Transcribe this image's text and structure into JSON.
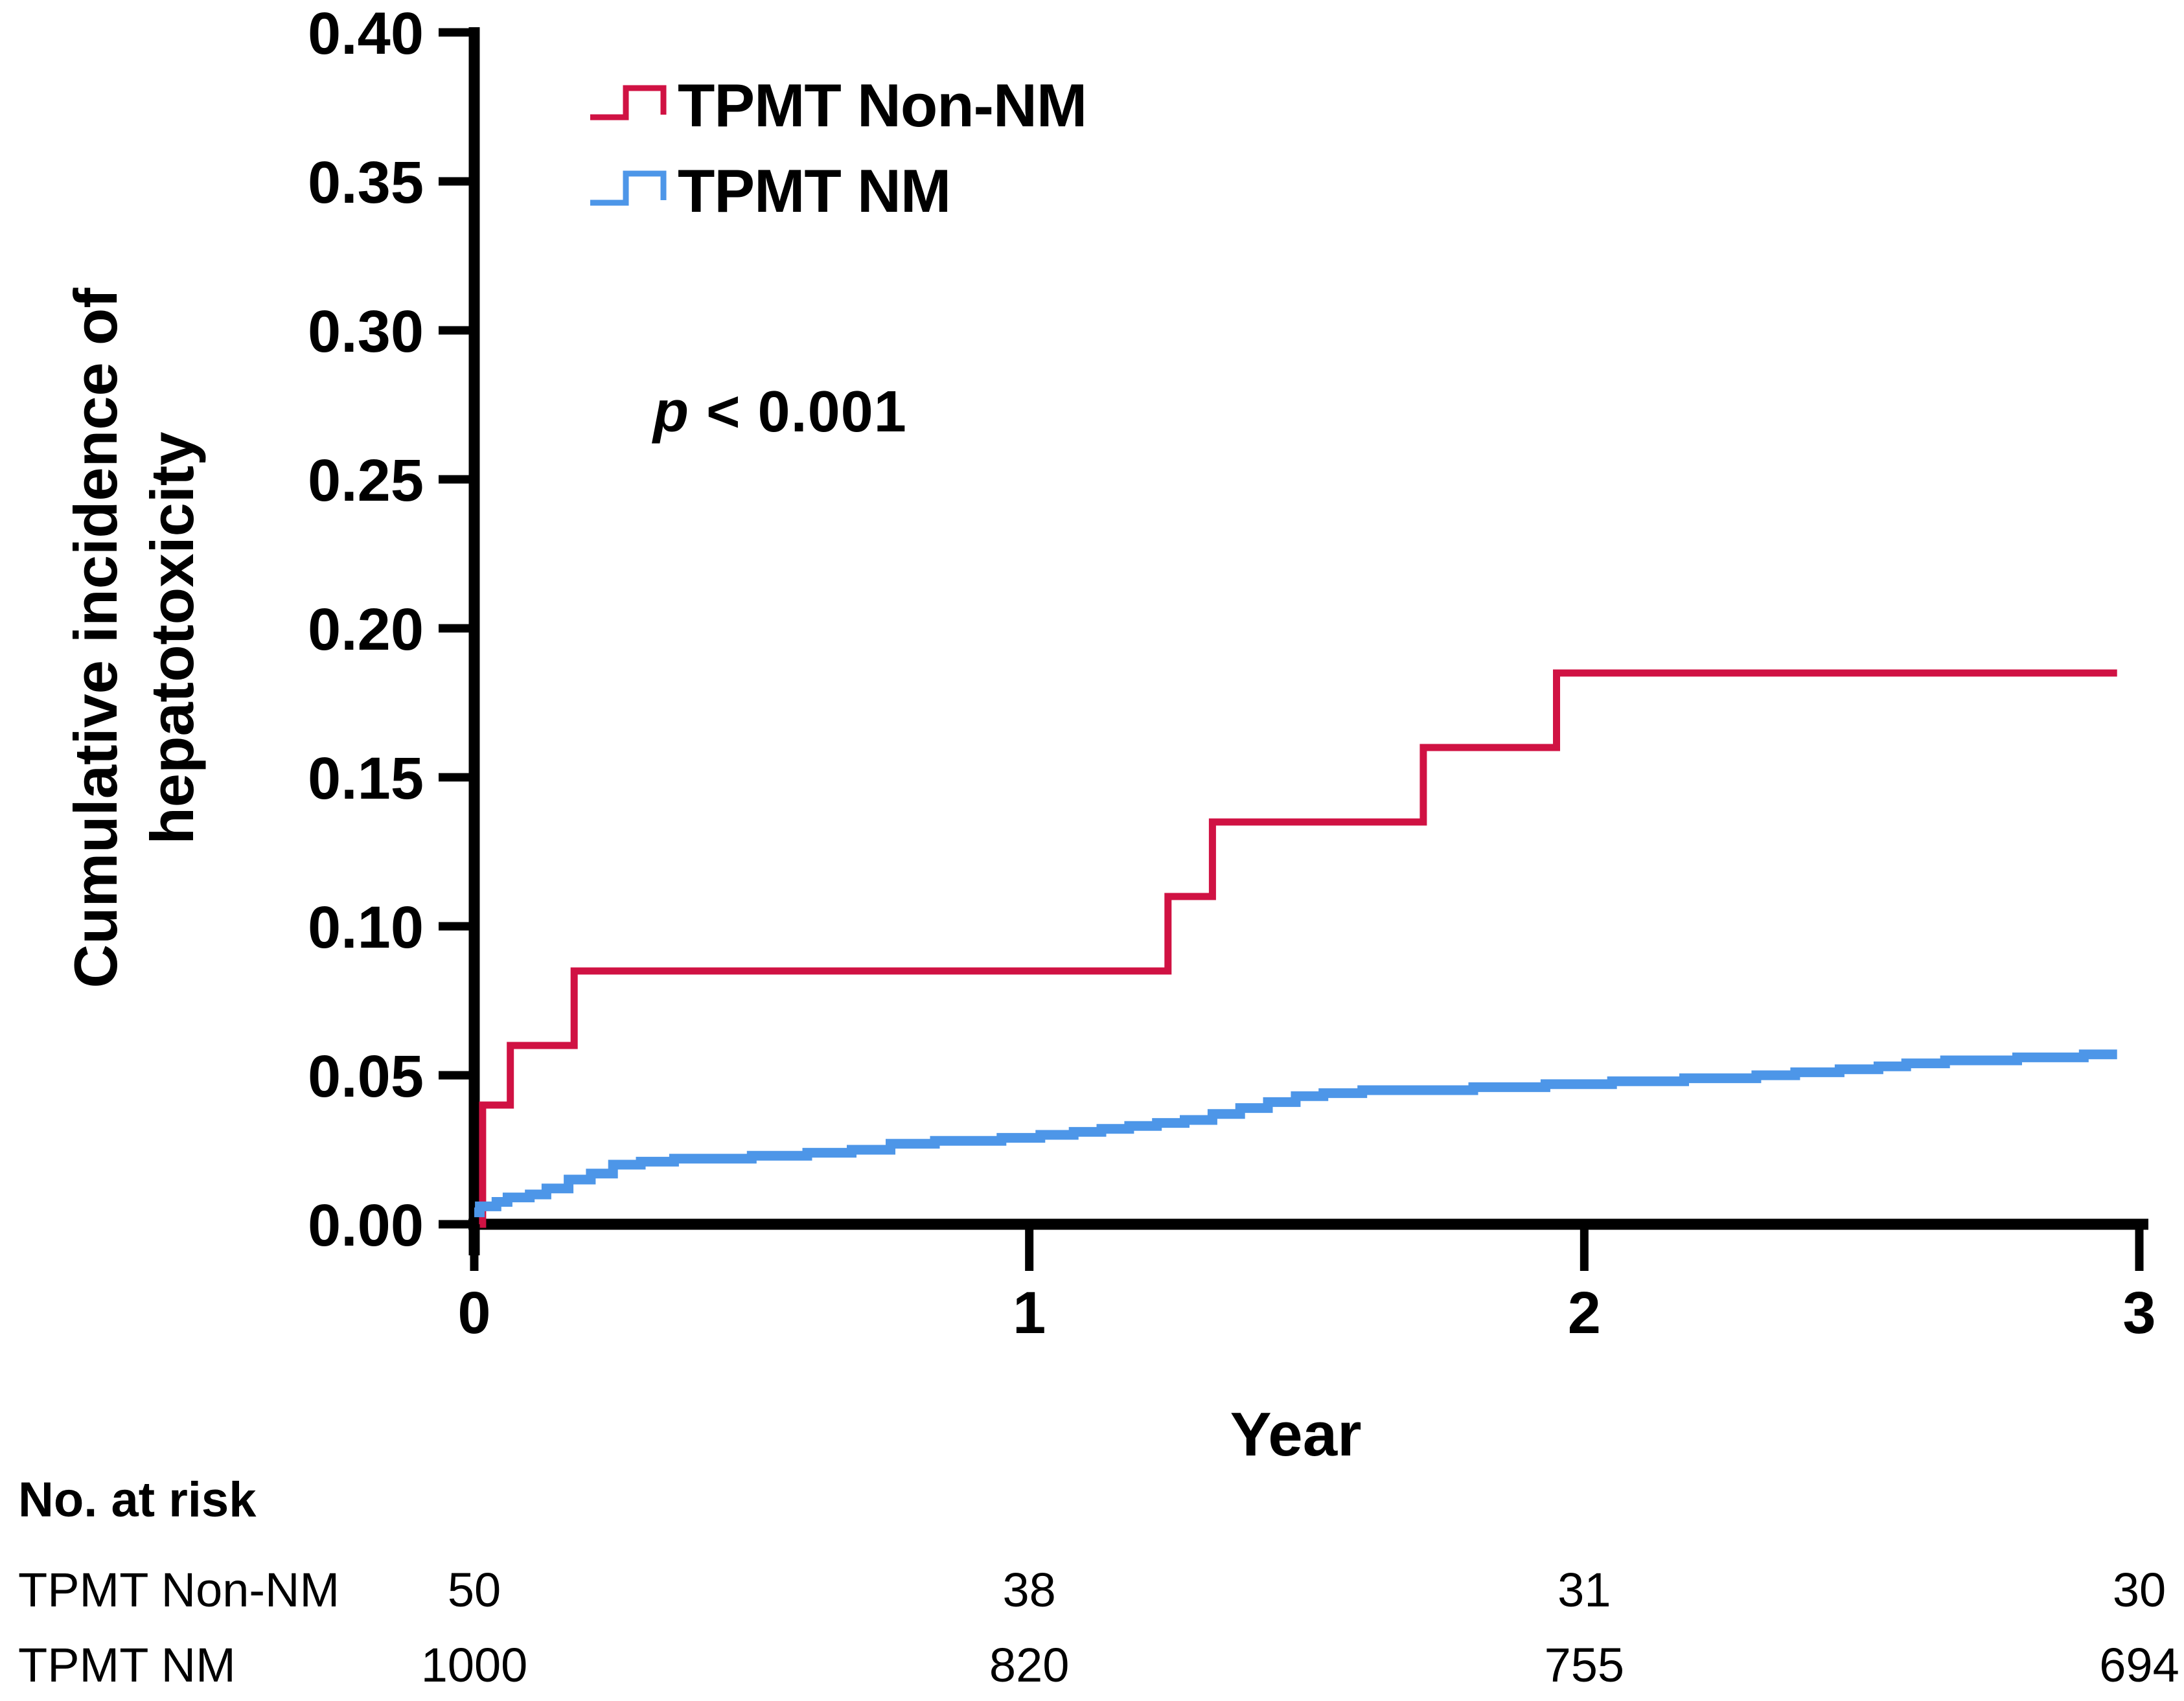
{
  "chart_data": {
    "type": "line",
    "subtype": "step",
    "title": "",
    "xlabel": "Year",
    "ylabel_lines": [
      "Cumulative incidence of",
      "hepatotoxicity"
    ],
    "xlim": [
      0,
      3
    ],
    "ylim": [
      0,
      0.4
    ],
    "grid": false,
    "xticks": {
      "values": [
        0,
        1,
        2,
        3
      ],
      "labels": [
        "0",
        "1",
        "2",
        "3"
      ]
    },
    "yticks": {
      "values": [
        0.0,
        0.05,
        0.1,
        0.15,
        0.2,
        0.25,
        0.3,
        0.35,
        0.4
      ],
      "labels": [
        "0.00",
        "0.05",
        "0.10",
        "0.15",
        "0.20",
        "0.25",
        "0.30",
        "0.35",
        "0.40"
      ]
    },
    "annotation": {
      "italic_part": "p",
      "text_part": " < 0.001"
    },
    "legend": {
      "position": "top-left-inside",
      "entries": [
        {
          "name": "TPMT Non-NM",
          "color": "#D01243"
        },
        {
          "name": "TPMT NM",
          "color": "#4D96E8"
        }
      ]
    },
    "series": [
      {
        "name": "TPMT Non-NM",
        "color": "#D01243",
        "stroke_width": 11,
        "end_x": 2.96,
        "points": [
          [
            0.01,
            0.0
          ],
          [
            0.015,
            0.04
          ],
          [
            0.065,
            0.06
          ],
          [
            0.18,
            0.085
          ],
          [
            1.25,
            0.11
          ],
          [
            1.33,
            0.135
          ],
          [
            1.71,
            0.16
          ],
          [
            1.95,
            0.185
          ]
        ]
      },
      {
        "name": "TPMT NM",
        "color": "#4D96E8",
        "stroke_width": 15,
        "end_x": 2.96,
        "points": [
          [
            0.0,
            0.004
          ],
          [
            0.01,
            0.006
          ],
          [
            0.04,
            0.0075
          ],
          [
            0.06,
            0.009
          ],
          [
            0.1,
            0.01
          ],
          [
            0.13,
            0.012
          ],
          [
            0.17,
            0.015
          ],
          [
            0.21,
            0.017
          ],
          [
            0.25,
            0.02
          ],
          [
            0.3,
            0.021
          ],
          [
            0.36,
            0.022
          ],
          [
            0.5,
            0.023
          ],
          [
            0.6,
            0.024
          ],
          [
            0.68,
            0.025
          ],
          [
            0.75,
            0.027
          ],
          [
            0.83,
            0.028
          ],
          [
            0.95,
            0.029
          ],
          [
            1.02,
            0.03
          ],
          [
            1.08,
            0.031
          ],
          [
            1.13,
            0.032
          ],
          [
            1.18,
            0.033
          ],
          [
            1.23,
            0.034
          ],
          [
            1.28,
            0.035
          ],
          [
            1.33,
            0.037
          ],
          [
            1.38,
            0.039
          ],
          [
            1.43,
            0.041
          ],
          [
            1.48,
            0.043
          ],
          [
            1.53,
            0.044
          ],
          [
            1.6,
            0.045
          ],
          [
            1.8,
            0.046
          ],
          [
            1.93,
            0.047
          ],
          [
            2.05,
            0.048
          ],
          [
            2.18,
            0.049
          ],
          [
            2.31,
            0.05
          ],
          [
            2.38,
            0.051
          ],
          [
            2.46,
            0.052
          ],
          [
            2.53,
            0.053
          ],
          [
            2.58,
            0.054
          ],
          [
            2.65,
            0.055
          ],
          [
            2.78,
            0.056
          ],
          [
            2.9,
            0.057
          ]
        ]
      }
    ]
  },
  "risk_table": {
    "title": "No. at risk",
    "time_points": [
      0,
      1,
      2,
      3
    ],
    "rows": [
      {
        "label": "TPMT Non-NM",
        "counts": [
          "50",
          "38",
          "31",
          "30"
        ]
      },
      {
        "label": "TPMT NM",
        "counts": [
          "1000",
          "820",
          "755",
          "694"
        ]
      }
    ]
  }
}
